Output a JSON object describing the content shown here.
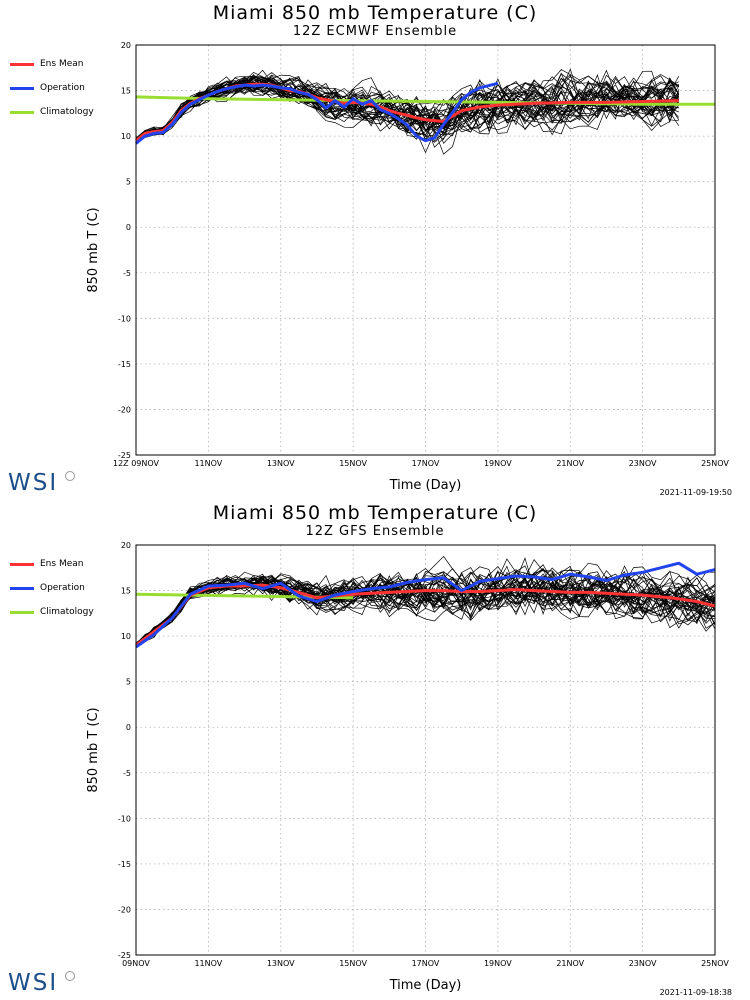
{
  "logo_text": "WSI",
  "legend": [
    {
      "label": "Ens Mean",
      "color": "#ff3333"
    },
    {
      "label": "Operation",
      "color": "#2244ee"
    },
    {
      "label": "Climatology",
      "color": "#99dd33"
    }
  ],
  "chart_data": [
    {
      "type": "line",
      "title": "Miami 850 mb Temperature (C)",
      "subtitle": "12Z ECMWF Ensemble",
      "xlabel": "Time (Day)",
      "ylabel": "850 mb T (C)",
      "ylim": [
        -25,
        20
      ],
      "yticks": [
        "20",
        "15",
        "10",
        "5",
        "0",
        "-5",
        "-10",
        "-15",
        "-20",
        "-25"
      ],
      "xlim": [
        0,
        16
      ],
      "xticks": [
        {
          "x": 0,
          "label": "12Z 09NOV"
        },
        {
          "x": 2,
          "label": "11NOV"
        },
        {
          "x": 4,
          "label": "13NOV"
        },
        {
          "x": 6,
          "label": "15NOV"
        },
        {
          "x": 8,
          "label": "17NOV"
        },
        {
          "x": 10,
          "label": "19NOV"
        },
        {
          "x": 12,
          "label": "21NOV"
        },
        {
          "x": 14,
          "label": "23NOV"
        },
        {
          "x": 16,
          "label": "25NOV"
        }
      ],
      "grid": true,
      "timestamp": "2021-11-09-19:50",
      "series": [
        {
          "name": "Climatology",
          "color": "#99dd33",
          "x": [
            0,
            2,
            4,
            6,
            8,
            10,
            12,
            14,
            16
          ],
          "y": [
            14.3,
            14.1,
            14.0,
            13.9,
            13.8,
            13.7,
            13.6,
            13.5,
            13.5
          ]
        },
        {
          "name": "Ens Mean",
          "color": "#ff3333",
          "x": [
            0,
            0.25,
            0.5,
            0.75,
            1,
            1.25,
            1.5,
            1.75,
            2,
            2.25,
            2.5,
            2.75,
            3,
            3.25,
            3.5,
            3.75,
            4,
            4.25,
            4.5,
            4.75,
            5,
            5.25,
            5.5,
            5.75,
            6,
            6.25,
            6.5,
            6.75,
            7,
            7.25,
            7.5,
            7.75,
            8,
            8.25,
            8.5,
            8.75,
            9,
            9.5,
            10,
            11,
            12,
            13,
            14,
            15
          ],
          "y": [
            9.5,
            10.3,
            10.5,
            10.6,
            11.5,
            12.8,
            13.6,
            14.1,
            14.5,
            14.9,
            15.2,
            15.5,
            15.6,
            15.7,
            15.7,
            15.6,
            15.3,
            15.0,
            14.9,
            14.6,
            14.2,
            14.0,
            13.8,
            13.6,
            13.7,
            13.6,
            13.5,
            13.2,
            12.8,
            12.5,
            12.3,
            12.0,
            11.8,
            11.7,
            11.6,
            12.2,
            12.8,
            13.2,
            13.4,
            13.6,
            13.7,
            13.7,
            13.8,
            13.9
          ]
        },
        {
          "name": "Operation",
          "color": "#2244ee",
          "x": [
            0,
            0.25,
            0.5,
            0.75,
            1,
            1.25,
            1.5,
            1.75,
            2,
            2.25,
            2.5,
            2.75,
            3,
            3.25,
            3.5,
            3.75,
            4,
            4.25,
            4.5,
            4.75,
            5,
            5.25,
            5.5,
            5.75,
            6,
            6.25,
            6.5,
            6.75,
            7,
            7.25,
            7.5,
            7.75,
            8,
            8.25,
            8.5,
            8.75,
            9,
            9.25,
            9.5,
            10
          ],
          "y": [
            9.2,
            10.0,
            10.3,
            10.4,
            11.3,
            12.6,
            13.5,
            14.0,
            14.5,
            14.9,
            15.2,
            15.4,
            15.6,
            15.5,
            15.6,
            15.5,
            15.3,
            15.2,
            14.8,
            14.6,
            14.0,
            13.1,
            13.9,
            13.2,
            14.1,
            13.5,
            13.9,
            12.9,
            12.5,
            11.9,
            11.2,
            10.0,
            9.5,
            9.8,
            11.3,
            12.6,
            14.0,
            14.8,
            15.3,
            15.8
          ]
        }
      ]
    },
    {
      "type": "line",
      "title": "Miami 850 mb Temperature (C)",
      "subtitle": "12Z GFS Ensemble",
      "xlabel": "Time (Day)",
      "ylabel": "850 mb T (C)",
      "ylim": [
        -25,
        20
      ],
      "yticks": [
        "20",
        "15",
        "10",
        "5",
        "0",
        "-5",
        "-10",
        "-15",
        "-20",
        "-25"
      ],
      "xlim": [
        0,
        16
      ],
      "xticks": [
        {
          "x": 0,
          "label": "09NOV"
        },
        {
          "x": 2,
          "label": "11NOV"
        },
        {
          "x": 4,
          "label": "13NOV"
        },
        {
          "x": 6,
          "label": "15NOV"
        },
        {
          "x": 8,
          "label": "17NOV"
        },
        {
          "x": 10,
          "label": "19NOV"
        },
        {
          "x": 12,
          "label": "21NOV"
        },
        {
          "x": 14,
          "label": "23NOV"
        },
        {
          "x": 16,
          "label": "25NOV"
        }
      ],
      "grid": true,
      "timestamp": "2021-11-09-18:38",
      "series": [
        {
          "name": "Climatology",
          "color": "#99dd33",
          "x": [
            0,
            1.5,
            3,
            4.5,
            6
          ],
          "y": [
            14.6,
            14.5,
            14.4,
            14.3,
            14.2
          ]
        },
        {
          "name": "Ens Mean",
          "color": "#ff3333",
          "x": [
            0,
            0.5,
            1,
            1.5,
            2,
            2.5,
            3,
            3.5,
            4,
            4.5,
            5,
            5.5,
            6,
            6.5,
            7,
            7.5,
            8,
            8.5,
            9,
            9.5,
            10,
            10.5,
            11,
            11.5,
            12,
            12.5,
            13,
            13.5,
            14,
            14.5,
            15,
            15.5,
            16
          ],
          "y": [
            9.0,
            10.5,
            12.0,
            14.5,
            15.3,
            15.5,
            15.5,
            15.6,
            15.3,
            14.8,
            14.2,
            14.4,
            14.6,
            14.7,
            14.8,
            14.9,
            15.0,
            15.0,
            14.9,
            14.9,
            15.0,
            15.1,
            15.0,
            14.9,
            14.8,
            14.8,
            14.7,
            14.6,
            14.5,
            14.3,
            14.1,
            13.8,
            13.3
          ]
        },
        {
          "name": "Operation",
          "color": "#2244ee",
          "x": [
            0,
            0.5,
            1,
            1.5,
            2,
            2.5,
            3,
            3.5,
            4,
            4.5,
            5,
            5.5,
            6,
            6.5,
            7,
            7.5,
            8,
            8.5,
            9,
            9.5,
            10,
            10.5,
            11,
            11.5,
            12,
            12.5,
            13,
            13.5,
            14,
            14.5,
            15,
            15.5,
            16
          ],
          "y": [
            8.8,
            10.2,
            12.0,
            14.6,
            15.5,
            15.6,
            15.8,
            15.2,
            15.8,
            14.4,
            13.8,
            14.5,
            14.9,
            15.2,
            15.4,
            15.9,
            16.2,
            16.4,
            15.0,
            16.0,
            16.3,
            16.6,
            16.5,
            16.2,
            16.8,
            16.5,
            16.1,
            16.7,
            17.0,
            17.5,
            18.0,
            16.8,
            17.3
          ]
        }
      ]
    }
  ]
}
